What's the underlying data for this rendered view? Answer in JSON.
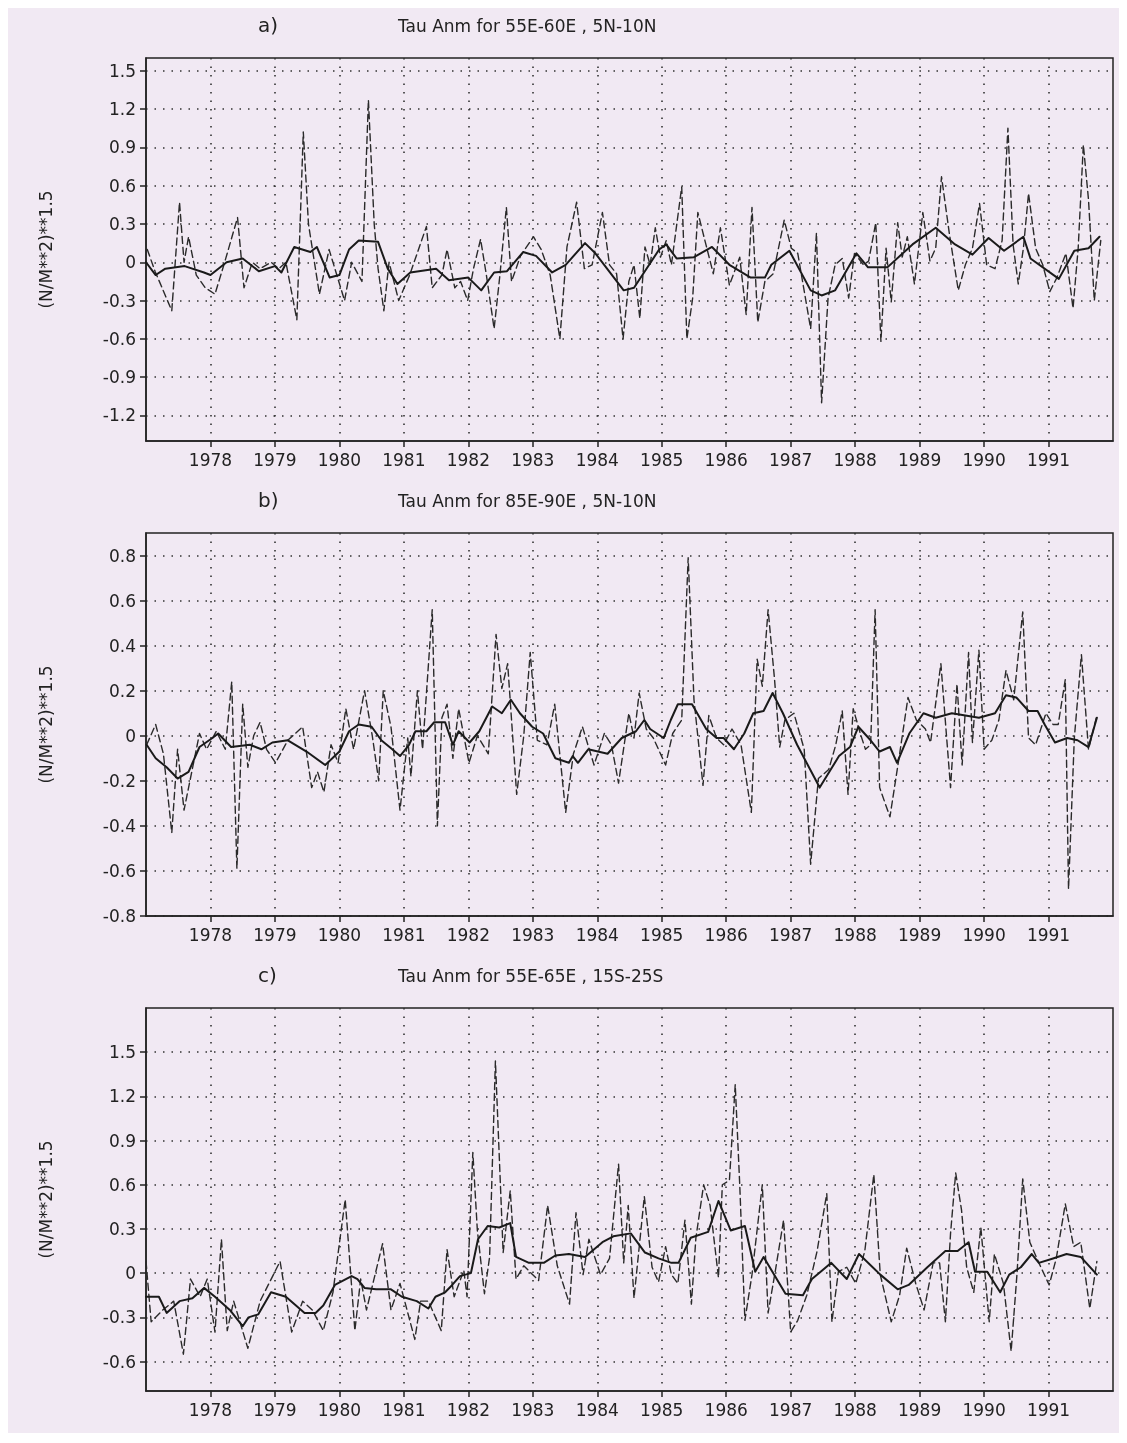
{
  "chart_data": [
    {
      "type": "line",
      "title": "Tau Anm for 55E-60E , 5N-10N",
      "annotations": [
        "a)"
      ],
      "ylabel": "(N/M**2)**1.5",
      "xlim": [
        1977,
        1992
      ],
      "xticks": [
        1978,
        1979,
        1980,
        1981,
        1982,
        1983,
        1984,
        1985,
        1986,
        1987,
        1988,
        1989,
        1990,
        1991
      ],
      "ylim": [
        -1.4,
        1.6
      ],
      "yticks": [
        -1.2,
        -0.9,
        -0.6,
        -0.3,
        0,
        0.3,
        0.6,
        0.9,
        1.2,
        1.5
      ],
      "grid": true,
      "marker": "none",
      "series": [
        {
          "color": "#2a2a2a",
          "line_style": "dashed",
          "x": [
            1977.02,
            1977.14,
            1977.4,
            1977.52,
            1977.59,
            1977.66,
            1977.78,
            1977.92,
            1978.07,
            1978.22,
            1978.42,
            1978.52,
            1978.65,
            1978.77,
            1978.94,
            1979.06,
            1979.17,
            1979.34,
            1979.44,
            1979.52,
            1979.69,
            1979.84,
            1979.96,
            1980.08,
            1980.19,
            1980.35,
            1980.45,
            1980.54,
            1980.6,
            1980.69,
            1980.77,
            1980.92,
            1981.09,
            1981.35,
            1981.44,
            1981.59,
            1981.67,
            1981.79,
            1981.88,
            1981.99,
            1982.08,
            1982.19,
            1982.28,
            1982.4,
            1982.49,
            1982.59,
            1982.67,
            1982.81,
            1983.01,
            1983.13,
            1983.27,
            1983.42,
            1983.53,
            1983.68,
            1983.8,
            1983.92,
            1984.08,
            1984.19,
            1984.3,
            1984.4,
            1984.49,
            1984.57,
            1984.66,
            1984.74,
            1984.82,
            1984.9,
            1984.98,
            1985.07,
            1985.15,
            1985.31,
            1985.39,
            1985.48,
            1985.56,
            1985.67,
            1985.8,
            1985.91,
            1986.05,
            1986.21,
            1986.31,
            1986.4,
            1986.49,
            1986.6,
            1986.73,
            1986.9,
            1987.01,
            1987.11,
            1987.31,
            1987.4,
            1987.48,
            1987.58,
            1987.69,
            1987.8,
            1987.9,
            1987.99,
            1988.13,
            1988.21,
            1988.32,
            1988.4,
            1988.48,
            1988.56,
            1988.66,
            1988.73,
            1988.81,
            1988.92,
            1989.05,
            1989.16,
            1989.25,
            1989.34,
            1989.46,
            1989.6,
            1989.71,
            1989.82,
            1989.93,
            1990.04,
            1990.17,
            1990.28,
            1990.37,
            1990.45,
            1990.53,
            1990.61,
            1990.69,
            1990.8,
            1990.91,
            1991.02,
            1991.13,
            1991.27,
            1991.38,
            1991.46,
            1991.54,
            1991.62,
            1991.71,
            1991.81
          ],
          "values": [
            0.1,
            -0.07,
            -0.38,
            0.47,
            0.0,
            0.2,
            -0.1,
            -0.2,
            -0.25,
            0.0,
            0.35,
            -0.2,
            0.0,
            -0.05,
            0.0,
            -0.05,
            0.0,
            -0.45,
            1.02,
            0.3,
            -0.25,
            0.1,
            -0.1,
            -0.3,
            0.0,
            -0.15,
            1.27,
            0.3,
            -0.05,
            -0.38,
            0.0,
            -0.3,
            -0.1,
            0.28,
            -0.2,
            -0.1,
            0.1,
            -0.2,
            -0.15,
            -0.3,
            -0.05,
            0.18,
            -0.1,
            -0.52,
            -0.1,
            0.43,
            -0.15,
            0.05,
            0.2,
            0.1,
            -0.1,
            -0.6,
            0.12,
            0.47,
            -0.05,
            -0.02,
            0.39,
            -0.02,
            -0.09,
            -0.6,
            -0.15,
            -0.02,
            -0.44,
            0.12,
            -0.02,
            0.27,
            0.04,
            0.17,
            -0.02,
            0.59,
            -0.6,
            -0.28,
            0.39,
            0.17,
            -0.09,
            0.27,
            -0.18,
            0.04,
            -0.41,
            0.43,
            -0.47,
            -0.15,
            -0.09,
            0.33,
            0.11,
            0.07,
            -0.52,
            0.23,
            -1.1,
            -0.28,
            -0.02,
            0.03,
            -0.28,
            0.07,
            -0.02,
            0.01,
            0.31,
            -0.62,
            0.11,
            -0.31,
            0.31,
            0.04,
            0.2,
            -0.17,
            0.39,
            0.01,
            0.11,
            0.67,
            0.23,
            -0.22,
            -0.02,
            0.11,
            0.46,
            -0.02,
            -0.05,
            0.17,
            1.05,
            0.14,
            -0.17,
            0.11,
            0.54,
            0.11,
            -0.02,
            -0.23,
            -0.12,
            0.07,
            -0.36,
            0.11,
            0.92,
            0.49,
            -0.3,
            0.17
          ]
        },
        {
          "color": "#1a1a1a",
          "line_style": "solid",
          "x": [
            1977.0,
            1977.15,
            1977.3,
            1977.6,
            1977.9,
            1978.0,
            1978.25,
            1978.5,
            1978.75,
            1979.0,
            1979.1,
            1979.3,
            1979.55,
            1979.65,
            1979.85,
            1980.0,
            1980.15,
            1980.3,
            1980.6,
            1980.75,
            1980.9,
            1981.1,
            1981.5,
            1981.7,
            1982.0,
            1982.2,
            1982.4,
            1982.6,
            1982.85,
            1983.05,
            1983.3,
            1983.51,
            1983.81,
            1983.97,
            1984.41,
            1984.57,
            1984.96,
            1985.07,
            1985.23,
            1985.5,
            1985.78,
            1986.05,
            1986.38,
            1986.6,
            1986.7,
            1986.98,
            1987.31,
            1987.48,
            1987.69,
            1988.02,
            1988.2,
            1988.5,
            1988.89,
            1989.25,
            1989.55,
            1989.82,
            1990.07,
            1990.31,
            1990.61,
            1990.72,
            1991.16,
            1991.4,
            1991.62,
            1991.79
          ],
          "values": [
            0.0,
            -0.1,
            -0.05,
            -0.03,
            -0.08,
            -0.1,
            0.0,
            0.03,
            -0.07,
            -0.03,
            -0.08,
            0.12,
            0.08,
            0.12,
            -0.12,
            -0.1,
            0.1,
            0.17,
            0.16,
            -0.05,
            -0.17,
            -0.08,
            -0.05,
            -0.14,
            -0.12,
            -0.22,
            -0.08,
            -0.07,
            0.08,
            0.05,
            -0.08,
            -0.02,
            0.15,
            0.07,
            -0.22,
            -0.2,
            0.1,
            0.14,
            0.03,
            0.04,
            0.12,
            -0.02,
            -0.12,
            -0.12,
            -0.02,
            0.09,
            -0.22,
            -0.26,
            -0.22,
            0.07,
            -0.04,
            -0.04,
            0.14,
            0.27,
            0.14,
            0.06,
            0.19,
            0.09,
            0.2,
            0.03,
            -0.13,
            0.09,
            0.11,
            0.2
          ]
        }
      ]
    },
    {
      "type": "line",
      "title": "Tau Anm for 85E-90E , 5N-10N",
      "annotations": [
        "b)"
      ],
      "ylabel": "(N/M**2)**1.5",
      "xlim": [
        1977,
        1992
      ],
      "xticks": [
        1978,
        1979,
        1980,
        1981,
        1982,
        1983,
        1984,
        1985,
        1986,
        1987,
        1988,
        1989,
        1990,
        1991
      ],
      "ylim": [
        -0.8,
        0.9
      ],
      "yticks": [
        -0.8,
        -0.6,
        -0.4,
        -0.2,
        0,
        0.2,
        0.4,
        0.6,
        0.8
      ],
      "grid": true,
      "marker": "none",
      "series": [
        {
          "color": "#2a2a2a",
          "line_style": "dashed",
          "x": [
            1977.01,
            1977.15,
            1977.27,
            1977.4,
            1977.49,
            1977.59,
            1977.71,
            1977.83,
            1977.94,
            1978.09,
            1978.23,
            1978.33,
            1978.41,
            1978.5,
            1978.58,
            1978.67,
            1978.77,
            1978.87,
            1979.01,
            1979.2,
            1979.43,
            1979.57,
            1979.66,
            1979.76,
            1979.87,
            1979.98,
            1980.1,
            1980.22,
            1980.39,
            1980.51,
            1980.61,
            1980.68,
            1980.8,
            1980.94,
            1981.06,
            1981.11,
            1981.21,
            1981.29,
            1981.44,
            1981.52,
            1981.59,
            1981.67,
            1981.76,
            1981.85,
            1982.01,
            1982.14,
            1982.31,
            1982.43,
            1982.52,
            1982.61,
            1982.75,
            1982.86,
            1982.96,
            1983.07,
            1983.22,
            1983.34,
            1983.51,
            1983.63,
            1983.77,
            1983.95,
            1984.11,
            1984.22,
            1984.33,
            1984.49,
            1984.57,
            1984.65,
            1984.76,
            1984.87,
            1985.06,
            1985.17,
            1985.31,
            1985.41,
            1985.5,
            1985.64,
            1985.73,
            1985.85,
            1985.96,
            1986.09,
            1986.23,
            1986.39,
            1986.48,
            1986.56,
            1986.65,
            1986.75,
            1986.83,
            1986.91,
            1987.05,
            1987.21,
            1987.31,
            1987.43,
            1987.59,
            1987.7,
            1987.8,
            1987.89,
            1987.97,
            1988.08,
            1988.16,
            1988.24,
            1988.31,
            1988.38,
            1988.54,
            1988.68,
            1988.82,
            1988.95,
            1989.09,
            1989.17,
            1989.33,
            1989.48,
            1989.58,
            1989.66,
            1989.76,
            1989.82,
            1989.92,
            1990.0,
            1990.12,
            1990.23,
            1990.34,
            1990.46,
            1990.6,
            1990.69,
            1990.8,
            1990.96,
            1991.07,
            1991.15,
            1991.26,
            1991.31,
            1991.4,
            1991.51,
            1991.62,
            1991.75
          ],
          "values": [
            -0.04,
            0.05,
            -0.08,
            -0.43,
            -0.06,
            -0.33,
            -0.16,
            0.01,
            -0.06,
            0.02,
            -0.06,
            0.24,
            -0.59,
            0.14,
            -0.14,
            0.0,
            0.06,
            -0.06,
            -0.12,
            -0.02,
            0.04,
            -0.23,
            -0.16,
            -0.25,
            -0.04,
            -0.12,
            0.12,
            -0.06,
            0.2,
            0.0,
            -0.2,
            0.2,
            0.04,
            -0.33,
            -0.01,
            -0.18,
            0.2,
            -0.06,
            0.56,
            -0.4,
            0.08,
            0.14,
            -0.1,
            0.12,
            -0.12,
            0.0,
            -0.08,
            0.45,
            0.21,
            0.32,
            -0.26,
            0.0,
            0.37,
            -0.02,
            -0.04,
            0.14,
            -0.34,
            -0.08,
            0.04,
            -0.13,
            0.01,
            -0.04,
            -0.21,
            0.1,
            -0.01,
            0.19,
            0.03,
            -0.01,
            -0.13,
            0.01,
            0.07,
            0.79,
            0.16,
            -0.22,
            0.09,
            -0.01,
            -0.04,
            0.03,
            -0.04,
            -0.34,
            0.34,
            0.22,
            0.56,
            0.25,
            -0.05,
            0.07,
            0.1,
            -0.06,
            -0.57,
            -0.19,
            -0.15,
            -0.04,
            0.11,
            -0.26,
            0.12,
            0.01,
            -0.06,
            -0.04,
            0.56,
            -0.23,
            -0.36,
            -0.1,
            0.17,
            0.07,
            0.03,
            -0.03,
            0.32,
            -0.23,
            0.23,
            -0.13,
            0.37,
            -0.03,
            0.38,
            -0.06,
            -0.02,
            0.07,
            0.29,
            0.16,
            0.55,
            -0.01,
            -0.04,
            0.1,
            0.05,
            0.05,
            0.25,
            -0.68,
            -0.01,
            0.36,
            -0.06,
            0.09
          ]
        },
        {
          "color": "#1a1a1a",
          "line_style": "solid",
          "x": [
            1977.01,
            1977.15,
            1977.32,
            1977.49,
            1977.66,
            1977.83,
            1978.03,
            1978.12,
            1978.32,
            1978.61,
            1978.79,
            1978.96,
            1979.2,
            1979.49,
            1979.78,
            1980.0,
            1980.15,
            1980.3,
            1980.5,
            1980.65,
            1980.82,
            1980.94,
            1981.08,
            1981.18,
            1981.35,
            1981.47,
            1981.64,
            1981.76,
            1981.85,
            1982.02,
            1982.17,
            1982.37,
            1982.52,
            1982.66,
            1982.8,
            1982.99,
            1983.16,
            1983.35,
            1983.56,
            1983.62,
            1983.7,
            1983.86,
            1984.16,
            1984.38,
            1984.6,
            1984.73,
            1984.82,
            1985.03,
            1985.14,
            1985.25,
            1985.47,
            1985.69,
            1985.85,
            1985.96,
            1986.12,
            1986.28,
            1986.42,
            1986.58,
            1986.72,
            1986.88,
            1987.1,
            1987.45,
            1987.75,
            1987.92,
            1988.05,
            1988.24,
            1988.38,
            1988.54,
            1988.65,
            1988.84,
            1989.06,
            1989.25,
            1989.5,
            1989.71,
            1989.92,
            1990.17,
            1990.34,
            1990.5,
            1990.69,
            1990.83,
            1990.94,
            1991.1,
            1991.29,
            1991.45,
            1991.62,
            1991.75
          ],
          "values": [
            -0.04,
            -0.1,
            -0.14,
            -0.19,
            -0.16,
            -0.05,
            -0.01,
            0.01,
            -0.05,
            -0.04,
            -0.06,
            -0.03,
            -0.02,
            -0.07,
            -0.13,
            -0.07,
            0.02,
            0.05,
            0.04,
            -0.02,
            -0.06,
            -0.09,
            -0.04,
            0.02,
            0.02,
            0.06,
            0.06,
            -0.04,
            0.02,
            -0.03,
            0.02,
            0.13,
            0.1,
            0.16,
            0.1,
            0.04,
            0.01,
            -0.1,
            -0.12,
            -0.09,
            -0.12,
            -0.06,
            -0.08,
            -0.01,
            0.02,
            0.07,
            0.03,
            -0.01,
            0.07,
            0.14,
            0.14,
            0.03,
            -0.01,
            -0.01,
            -0.06,
            0.01,
            0.1,
            0.11,
            0.19,
            0.1,
            -0.04,
            -0.23,
            -0.09,
            -0.05,
            0.04,
            -0.02,
            -0.07,
            -0.05,
            -0.12,
            0.01,
            0.1,
            0.08,
            0.1,
            0.09,
            0.08,
            0.1,
            0.18,
            0.17,
            0.11,
            0.11,
            0.05,
            -0.03,
            -0.01,
            -0.02,
            -0.05,
            0.08
          ]
        }
      ]
    },
    {
      "type": "line",
      "title": "Tau Anm for 55E-65E , 15S-25S",
      "annotations": [
        "c)"
      ],
      "ylabel": "(N/M**2)**1.5",
      "xlim": [
        1977,
        1992
      ],
      "xticks": [
        1978,
        1979,
        1980,
        1981,
        1982,
        1983,
        1984,
        1985,
        1986,
        1987,
        1988,
        1989,
        1990,
        1991
      ],
      "ylim": [
        -0.8,
        1.8
      ],
      "yticks": [
        -0.6,
        -0.3,
        0,
        0.3,
        0.6,
        0.9,
        1.2,
        1.5
      ],
      "grid": true,
      "marker": "none",
      "series": [
        {
          "color": "#2a2a2a",
          "line_style": "dashed",
          "x": [
            1977.0,
            1977.08,
            1977.26,
            1977.43,
            1977.58,
            1977.69,
            1977.84,
            1977.95,
            1978.07,
            1978.17,
            1978.26,
            1978.36,
            1978.58,
            1978.77,
            1979.08,
            1979.26,
            1979.43,
            1979.58,
            1979.75,
            1979.9,
            1980.09,
            1980.24,
            1980.33,
            1980.42,
            1980.67,
            1980.8,
            1980.94,
            1981.17,
            1981.26,
            1981.38,
            1981.58,
            1981.67,
            1981.78,
            1981.93,
            1981.98,
            1982.07,
            1982.14,
            1982.25,
            1982.33,
            1982.42,
            1982.54,
            1982.65,
            1982.74,
            1982.86,
            1983.09,
            1983.23,
            1983.38,
            1983.57,
            1983.67,
            1983.78,
            1983.87,
            1984.05,
            1984.19,
            1984.33,
            1984.41,
            1984.48,
            1984.57,
            1984.73,
            1984.85,
            1984.95,
            1985.06,
            1985.15,
            1985.25,
            1985.36,
            1985.46,
            1985.53,
            1985.65,
            1985.75,
            1985.88,
            1985.94,
            1986.05,
            1986.14,
            1986.21,
            1986.29,
            1986.4,
            1986.56,
            1986.65,
            1986.76,
            1986.89,
            1987.0,
            1987.11,
            1987.25,
            1987.41,
            1987.56,
            1987.64,
            1987.74,
            1987.87,
            1988.01,
            1988.15,
            1988.29,
            1988.39,
            1988.56,
            1988.69,
            1988.8,
            1988.94,
            1989.07,
            1989.21,
            1989.31,
            1989.4,
            1989.48,
            1989.56,
            1989.65,
            1989.73,
            1989.84,
            1989.95,
            1990.08,
            1990.16,
            1990.3,
            1990.42,
            1990.51,
            1990.6,
            1990.71,
            1990.85,
            1991.01,
            1991.12,
            1991.26,
            1991.39,
            1991.5,
            1991.64,
            1991.75
          ],
          "values": [
            0.08,
            -0.33,
            -0.25,
            -0.19,
            -0.55,
            -0.04,
            -0.16,
            -0.04,
            -0.4,
            0.23,
            -0.39,
            -0.19,
            -0.51,
            -0.19,
            0.08,
            -0.4,
            -0.19,
            -0.25,
            -0.39,
            -0.13,
            0.5,
            -0.39,
            -0.04,
            -0.25,
            0.2,
            -0.25,
            -0.07,
            -0.45,
            -0.19,
            -0.19,
            -0.39,
            0.16,
            -0.16,
            0.02,
            -0.16,
            0.82,
            0.29,
            -0.14,
            0.11,
            1.44,
            0.14,
            0.56,
            -0.04,
            0.05,
            -0.05,
            0.46,
            0.05,
            -0.21,
            0.41,
            -0.01,
            0.23,
            -0.01,
            0.1,
            0.74,
            0.07,
            0.46,
            -0.17,
            0.52,
            0.04,
            -0.06,
            0.18,
            -0.01,
            -0.07,
            0.36,
            -0.21,
            0.24,
            0.6,
            0.46,
            -0.03,
            0.6,
            0.63,
            1.28,
            0.6,
            -0.32,
            -0.01,
            0.6,
            -0.27,
            0.01,
            0.36,
            -0.4,
            -0.32,
            -0.15,
            0.15,
            0.54,
            -0.33,
            0.01,
            0.04,
            -0.07,
            0.15,
            0.67,
            -0.01,
            -0.33,
            -0.15,
            0.17,
            -0.07,
            -0.25,
            0.07,
            0.07,
            -0.33,
            0.27,
            0.68,
            0.43,
            0.04,
            -0.13,
            0.31,
            -0.33,
            0.13,
            -0.07,
            -0.53,
            -0.01,
            0.64,
            0.21,
            0.07,
            -0.08,
            0.1,
            0.47,
            0.18,
            0.21,
            -0.24,
            0.08
          ]
        },
        {
          "color": "#1a1a1a",
          "line_style": "solid",
          "x": [
            1977.0,
            1977.2,
            1977.32,
            1977.52,
            1977.72,
            1977.9,
            1978.07,
            1978.3,
            1978.5,
            1978.59,
            1978.74,
            1978.94,
            1979.17,
            1979.46,
            1979.63,
            1979.75,
            1979.93,
            1980.19,
            1980.28,
            1980.39,
            1980.57,
            1980.8,
            1980.97,
            1981.2,
            1981.38,
            1981.49,
            1981.64,
            1981.75,
            1981.87,
            1982.04,
            1982.15,
            1982.3,
            1982.48,
            1982.65,
            1982.74,
            1982.94,
            1983.17,
            1983.35,
            1983.56,
            1983.81,
            1984.08,
            1984.25,
            1984.52,
            1984.74,
            1984.95,
            1985.15,
            1985.26,
            1985.45,
            1985.72,
            1985.88,
            1986.07,
            1986.29,
            1986.45,
            1986.58,
            1986.92,
            1987.19,
            1987.33,
            1987.63,
            1987.87,
            1988.06,
            1988.39,
            1988.66,
            1988.83,
            1989.12,
            1989.4,
            1989.59,
            1989.76,
            1989.86,
            1990.05,
            1990.25,
            1990.39,
            1990.57,
            1990.74,
            1990.85,
            1991.07,
            1991.28,
            1991.5,
            1991.75
          ],
          "values": [
            -0.16,
            -0.16,
            -0.27,
            -0.19,
            -0.17,
            -0.1,
            -0.16,
            -0.25,
            -0.36,
            -0.3,
            -0.28,
            -0.13,
            -0.16,
            -0.27,
            -0.27,
            -0.22,
            -0.08,
            -0.02,
            -0.04,
            -0.1,
            -0.11,
            -0.11,
            -0.16,
            -0.19,
            -0.24,
            -0.16,
            -0.13,
            -0.08,
            -0.02,
            0.0,
            0.23,
            0.32,
            0.31,
            0.34,
            0.11,
            0.07,
            0.07,
            0.12,
            0.13,
            0.11,
            0.21,
            0.25,
            0.27,
            0.14,
            0.1,
            0.07,
            0.07,
            0.24,
            0.28,
            0.49,
            0.29,
            0.32,
            0.01,
            0.11,
            -0.14,
            -0.15,
            -0.04,
            0.07,
            -0.04,
            0.13,
            -0.01,
            -0.11,
            -0.08,
            0.04,
            0.15,
            0.15,
            0.21,
            0.01,
            0.01,
            -0.13,
            -0.01,
            0.04,
            0.13,
            0.07,
            0.1,
            0.13,
            0.11,
            -0.01
          ]
        }
      ]
    }
  ]
}
